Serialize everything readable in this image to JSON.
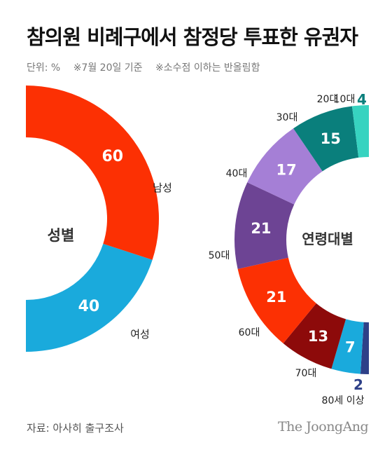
{
  "title": "참의원 비례구에서 참정당 투표한 유권자",
  "notes": [
    "단위: %",
    "※7월 20일 기준",
    "※소수점 이하는 반올림함"
  ],
  "source": "자료: 아사히 출구조사",
  "brand": "The JoongAng",
  "colors": {
    "male": "#fc3003",
    "female": "#1aaadc",
    "age_10s": "#37d3c0",
    "age_20s": "#0a7f7c",
    "age_30s": "#a57fd6",
    "age_40s": "#6d4494",
    "age_50s": "#fc3003",
    "age_60s": "#8d0a0a",
    "age_70s": "#1aaadc",
    "age_80plus": "#2e4088"
  },
  "chart_data": [
    {
      "type": "pie",
      "center_label": "성별",
      "slices": [
        {
          "category": "남성",
          "value": 60,
          "color": "#fc3003"
        },
        {
          "category": "여성",
          "value": 40,
          "color": "#1aaadc"
        }
      ]
    },
    {
      "type": "pie",
      "center_label": "연령대별",
      "slices": [
        {
          "category": "10대",
          "value": 4,
          "color": "#37d3c0",
          "value_color": "#0a7f7c"
        },
        {
          "category": "20대",
          "value": 15,
          "color": "#0a7f7c"
        },
        {
          "category": "30대",
          "value": 17,
          "color": "#a57fd6"
        },
        {
          "category": "40대",
          "value": 21,
          "color": "#6d4494"
        },
        {
          "category": "50대",
          "value": 21,
          "color": "#fc3003"
        },
        {
          "category": "60대",
          "value": 13,
          "color": "#8d0a0a"
        },
        {
          "category": "70대",
          "value": 7,
          "color": "#1aaadc"
        },
        {
          "category": "80세 이상",
          "value": 2,
          "color": "#2e4088",
          "value_color": "#2e4088"
        }
      ]
    }
  ]
}
